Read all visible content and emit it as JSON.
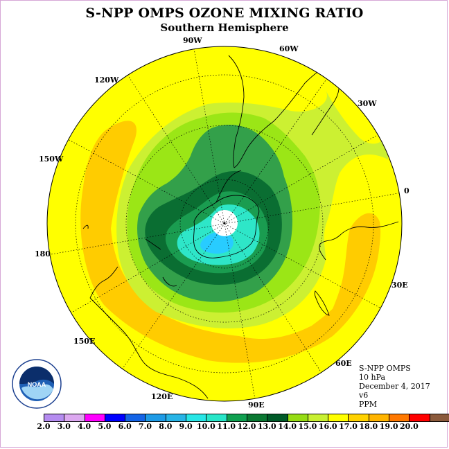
{
  "title": "S-NPP OMPS OZONE MIXING RATIO",
  "subtitle": "Southern Hemisphere",
  "longitude_labels": {
    "w90": "90W",
    "w60": "60W",
    "w30": "30W",
    "zero": "0",
    "w120": "120W",
    "w150": "150W",
    "d180": "180",
    "e30": "30E",
    "e60": "60E",
    "e90": "90E",
    "e120": "120E",
    "e150": "150E"
  },
  "info": {
    "instrument": "S-NPP OMPS",
    "level": "10 hPa",
    "date": "December 4, 2017",
    "version": "v6",
    "units": "PPM"
  },
  "logo": {
    "text": "NOAA"
  },
  "colorbar": {
    "labels": [
      "2.0",
      "3.0",
      "4.0",
      "5.0",
      "6.0",
      "7.0",
      "8.0",
      "9.0",
      "10.0",
      "11.0",
      "12.0",
      "13.0",
      "14.0",
      "15.0",
      "16.0",
      "17.0",
      "18.0",
      "19.0",
      "20.0"
    ],
    "colors": [
      "#b58cf0",
      "#dca8f0",
      "#ff00ff",
      "#0000ff",
      "#1464e6",
      "#1e9be6",
      "#28b4e6",
      "#28e6e6",
      "#28e6c8",
      "#10a050",
      "#0a7832",
      "#005a28",
      "#96dc14",
      "#c8f032",
      "#ffff00",
      "#ffd200",
      "#ffb400",
      "#ff7800",
      "#ff0000",
      "#8b5a3c"
    ]
  },
  "colors": {
    "yellow": "#ffff00",
    "orange": "#ffcc00",
    "light_green": "#ccf032",
    "mid_green": "#9be616",
    "green": "#33a04a",
    "dark_green": "#0a6e32",
    "cyan_green": "#2ee6c8",
    "cyan": "#28ccff",
    "blue": "#2eb8ff"
  }
}
